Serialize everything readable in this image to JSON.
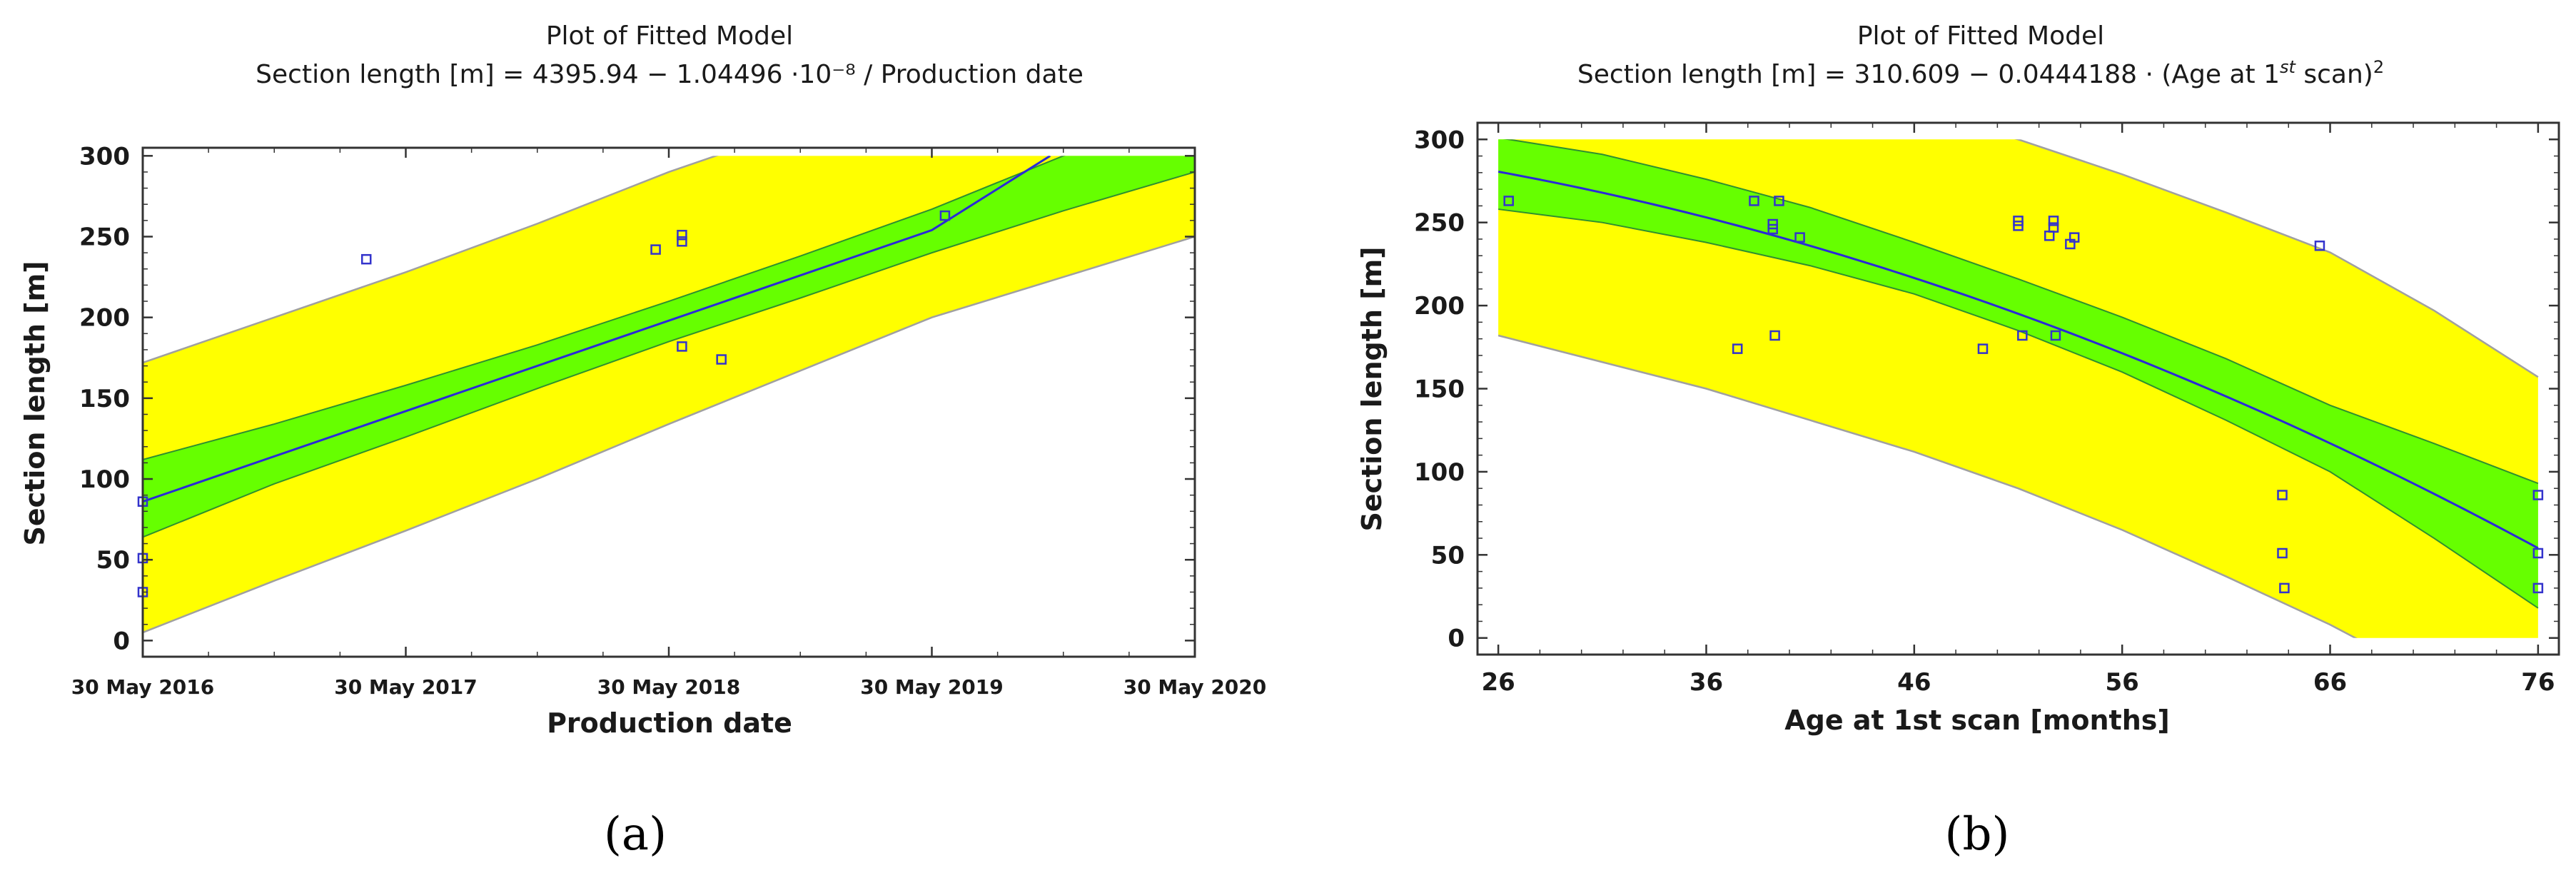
{
  "colors": {
    "prediction_band": "#ffff00",
    "confidence_band": "#66ff00",
    "fit_line": "#2a2ad8",
    "points": "#3333cc",
    "band_edge": "#a0a0a0"
  },
  "chart_data": [
    {
      "id": "a",
      "type": "scatter",
      "panel_label": "(a)",
      "title": "Plot of Fitted Model",
      "subtitle": "Section length [m] = 4395.94 − 1.04496 ·10⁻⁸ / Production date",
      "xlabel": "Production date",
      "ylabel": "Section length [m]",
      "x_unit": "years since 30 May 2016",
      "xlim": [
        0,
        4
      ],
      "ylim": [
        -10,
        305
      ],
      "x_ticks": [
        0,
        1,
        2,
        3,
        4
      ],
      "x_tick_labels": [
        "30 May 2016",
        "30 May 2017",
        "30 May 2018",
        "30 May 2019",
        "30 May 2020"
      ],
      "y_ticks": [
        0,
        50,
        100,
        150,
        200,
        250,
        300
      ],
      "y_tick_labels": [
        "0",
        "50",
        "100",
        "150",
        "200",
        "250",
        "300"
      ],
      "clip_max": 300,
      "fit": {
        "x": [
          0,
          1,
          2,
          3,
          3.45
        ],
        "y": [
          86,
          142,
          198,
          254,
          300
        ]
      },
      "confidence_band": {
        "x": [
          0,
          0.5,
          1,
          1.5,
          2,
          2.5,
          3,
          3.5,
          4
        ],
        "lower": [
          64,
          97,
          126,
          156,
          185,
          212,
          240,
          266,
          290
        ],
        "upper": [
          112,
          134,
          158,
          183,
          210,
          238,
          267,
          300,
          330
        ]
      },
      "prediction_band": {
        "x": [
          0,
          0.5,
          1,
          1.5,
          2,
          2.5,
          3,
          3.5,
          4
        ],
        "lower": [
          5,
          37,
          68,
          100,
          134,
          167,
          200,
          225,
          250
        ],
        "upper": [
          172,
          200,
          228,
          258,
          290,
          318,
          350,
          380,
          410
        ]
      },
      "points": {
        "x": [
          0,
          0,
          0,
          0.85,
          1.95,
          2.05,
          2.05,
          2.05,
          2.2,
          3.05
        ],
        "y": [
          86,
          51,
          30,
          236,
          242,
          251,
          247,
          182,
          174,
          263
        ]
      }
    },
    {
      "id": "b",
      "type": "scatter",
      "panel_label": "(b)",
      "title": "Plot of Fitted Model",
      "subtitle_parts": [
        "Section length [m] = 310.609 − 0.0444188 · (Age at 1",
        "st",
        " scan)",
        "2"
      ],
      "xlabel": "Age at 1st scan [months]",
      "ylabel": "Section length [m]",
      "xlim": [
        25,
        77
      ],
      "ylim": [
        -10,
        310
      ],
      "x_ticks": [
        26,
        36,
        46,
        56,
        66,
        76
      ],
      "x_tick_labels": [
        "26",
        "36",
        "46",
        "56",
        "66",
        "76"
      ],
      "y_ticks": [
        0,
        50,
        100,
        150,
        200,
        250,
        300
      ],
      "y_tick_labels": [
        "0",
        "50",
        "100",
        "150",
        "200",
        "250",
        "300"
      ],
      "clip_max": 300,
      "clip_min": 0,
      "fit": {
        "model": "310.609 - 0.0444188 * x^2",
        "a": 310.609,
        "b": 0.0444188
      },
      "confidence_band": {
        "x": [
          26,
          31,
          36,
          41,
          46,
          51,
          56,
          61,
          66,
          71,
          76
        ],
        "lower": [
          258,
          250,
          238,
          224,
          207,
          185,
          160,
          131,
          100,
          60,
          18
        ],
        "upper": [
          301,
          291,
          276,
          259,
          238,
          216,
          193,
          168,
          140,
          117,
          93
        ]
      },
      "prediction_band": {
        "x": [
          26,
          31,
          36,
          41,
          46,
          51,
          56,
          61,
          66,
          71,
          76
        ],
        "lower": [
          182,
          166,
          150,
          131,
          112,
          90,
          65,
          37,
          8,
          -25,
          -60
        ],
        "upper": [
          400,
          383,
          363,
          342,
          318,
          300,
          279,
          256,
          232,
          197,
          157
        ]
      },
      "points": {
        "x": [
          26.5,
          37.5,
          38.3,
          39.2,
          39.2,
          39.3,
          39.5,
          40.5,
          49.3,
          51.0,
          51.0,
          51.2,
          52.5,
          52.7,
          52.7,
          52.8,
          53.5,
          53.7,
          63.7,
          63.7,
          63.8,
          65.5,
          76,
          76,
          76
        ],
        "y": [
          263,
          174,
          263,
          249,
          246,
          182,
          263,
          241,
          174,
          251,
          248,
          182,
          242,
          251,
          247,
          182,
          237,
          241,
          86,
          51,
          30,
          236,
          86,
          51,
          30
        ]
      }
    }
  ]
}
